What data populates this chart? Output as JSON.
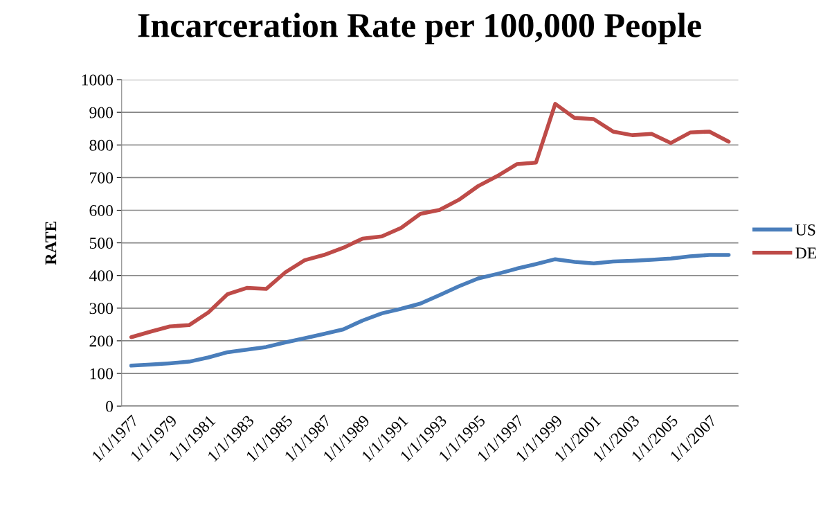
{
  "chart_data": {
    "type": "line",
    "title": "Incarceration Rate per 100,000 People",
    "ylabel": "RATE",
    "categories": [
      "1/1/1977",
      null,
      "1/1/1979",
      null,
      "1/1/1981",
      null,
      "1/1/1983",
      null,
      "1/1/1985",
      null,
      "1/1/1987",
      null,
      "1/1/1989",
      null,
      "1/1/1991",
      null,
      "1/1/1993",
      null,
      "1/1/1995",
      null,
      "1/1/1997",
      null,
      "1/1/1999",
      null,
      "1/1/2001",
      null,
      "1/1/2003",
      null,
      "1/1/2005",
      null,
      "1/1/2007",
      null
    ],
    "series": [
      {
        "name": "US",
        "color": "#4a7ebb",
        "values": [
          124,
          127,
          131,
          136,
          149,
          165,
          173,
          181,
          195,
          208,
          221,
          235,
          262,
          284,
          298,
          314,
          340,
          367,
          391,
          405,
          421,
          435,
          450,
          442,
          437,
          443,
          445,
          448,
          452,
          459,
          463,
          463
        ]
      },
      {
        "name": "DE",
        "color": "#be4b48",
        "values": [
          211,
          228,
          244,
          248,
          287,
          343,
          362,
          359,
          410,
          447,
          463,
          485,
          513,
          520,
          546,
          589,
          601,
          632,
          674,
          705,
          741,
          746,
          926,
          883,
          879,
          841,
          830,
          834,
          806,
          838,
          841,
          810
        ]
      }
    ],
    "ylim": [
      0,
      1000
    ],
    "yticks": [
      0,
      100,
      200,
      300,
      400,
      500,
      600,
      700,
      800,
      900,
      1000
    ],
    "grid": "y",
    "legend": "right",
    "marker": "none",
    "line_style": "solid"
  }
}
